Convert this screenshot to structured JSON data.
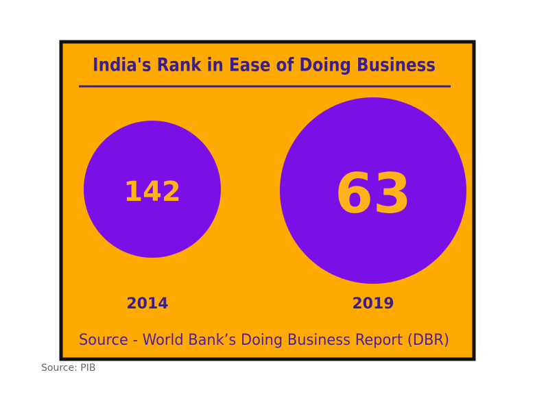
{
  "title": "India's Rank in Ease of Doing Business",
  "entries": [
    {
      "year": "2014",
      "rank": 142
    },
    {
      "year": "2019",
      "rank": 63
    }
  ],
  "footnote": "Source - World Bank’s Doing Business Report (DBR)",
  "caption": "Source: PIB"
}
